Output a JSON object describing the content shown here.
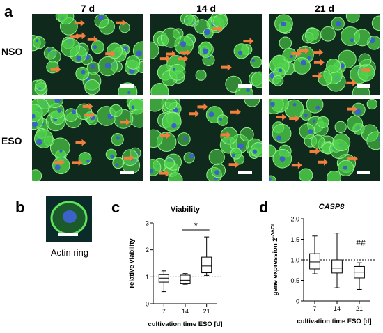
{
  "panels": {
    "a": {
      "letter": "a",
      "columns": [
        "7 d",
        "14 d",
        "21 d"
      ],
      "rows": [
        "NSO",
        "ESO"
      ]
    },
    "b": {
      "letter": "b",
      "caption": "Actin ring"
    },
    "c": {
      "letter": "c"
    },
    "d": {
      "letter": "d"
    }
  },
  "colors": {
    "cell_green": "#4fd24a",
    "nucleus_blue": "#3a62c8",
    "arrow_orange": "#f27f3d",
    "background_dark": "#0f2a1c"
  },
  "chart_data": [
    {
      "type": "boxplot",
      "title": "Viability",
      "xlabel": "cultivation time ESO [d]",
      "ylabel": "relative viability",
      "ylim": [
        0,
        3
      ],
      "yticks": [
        "0",
        "1",
        "2",
        "3"
      ],
      "categories": [
        "7",
        "14",
        "21"
      ],
      "boxes": [
        {
          "min": 0.45,
          "q1": 0.8,
          "median": 0.95,
          "q3": 1.08,
          "max": 1.22
        },
        {
          "min": 0.72,
          "q1": 0.76,
          "median": 0.87,
          "q3": 1.06,
          "max": 1.12
        },
        {
          "min": 1.05,
          "q1": 1.15,
          "median": 1.4,
          "q3": 1.73,
          "max": 2.48
        }
      ],
      "reference_line": 1,
      "annotation": {
        "text": "*",
        "between": [
          "14",
          "21"
        ]
      }
    },
    {
      "type": "boxplot",
      "title": "CASP8",
      "xlabel": "cultivation time ESO [d]",
      "ylabel": "gene expression 2",
      "ylabel_superscript": "-ΔΔCt",
      "ylim": [
        0,
        2
      ],
      "yticks": [
        "0",
        "0.5",
        "1.0",
        "1.5",
        "2.0"
      ],
      "categories": [
        "7",
        "14",
        "21"
      ],
      "boxes": [
        {
          "min": 0.66,
          "q1": 0.78,
          "median": 0.95,
          "q3": 1.15,
          "max": 1.58
        },
        {
          "min": 0.32,
          "q1": 0.68,
          "median": 0.8,
          "q3": 1.0,
          "max": 1.65
        },
        {
          "min": 0.28,
          "q1": 0.56,
          "median": 0.7,
          "q3": 0.84,
          "max": 0.93
        }
      ],
      "reference_line": 1,
      "annotation": {
        "text": "##",
        "above": "21"
      }
    }
  ]
}
